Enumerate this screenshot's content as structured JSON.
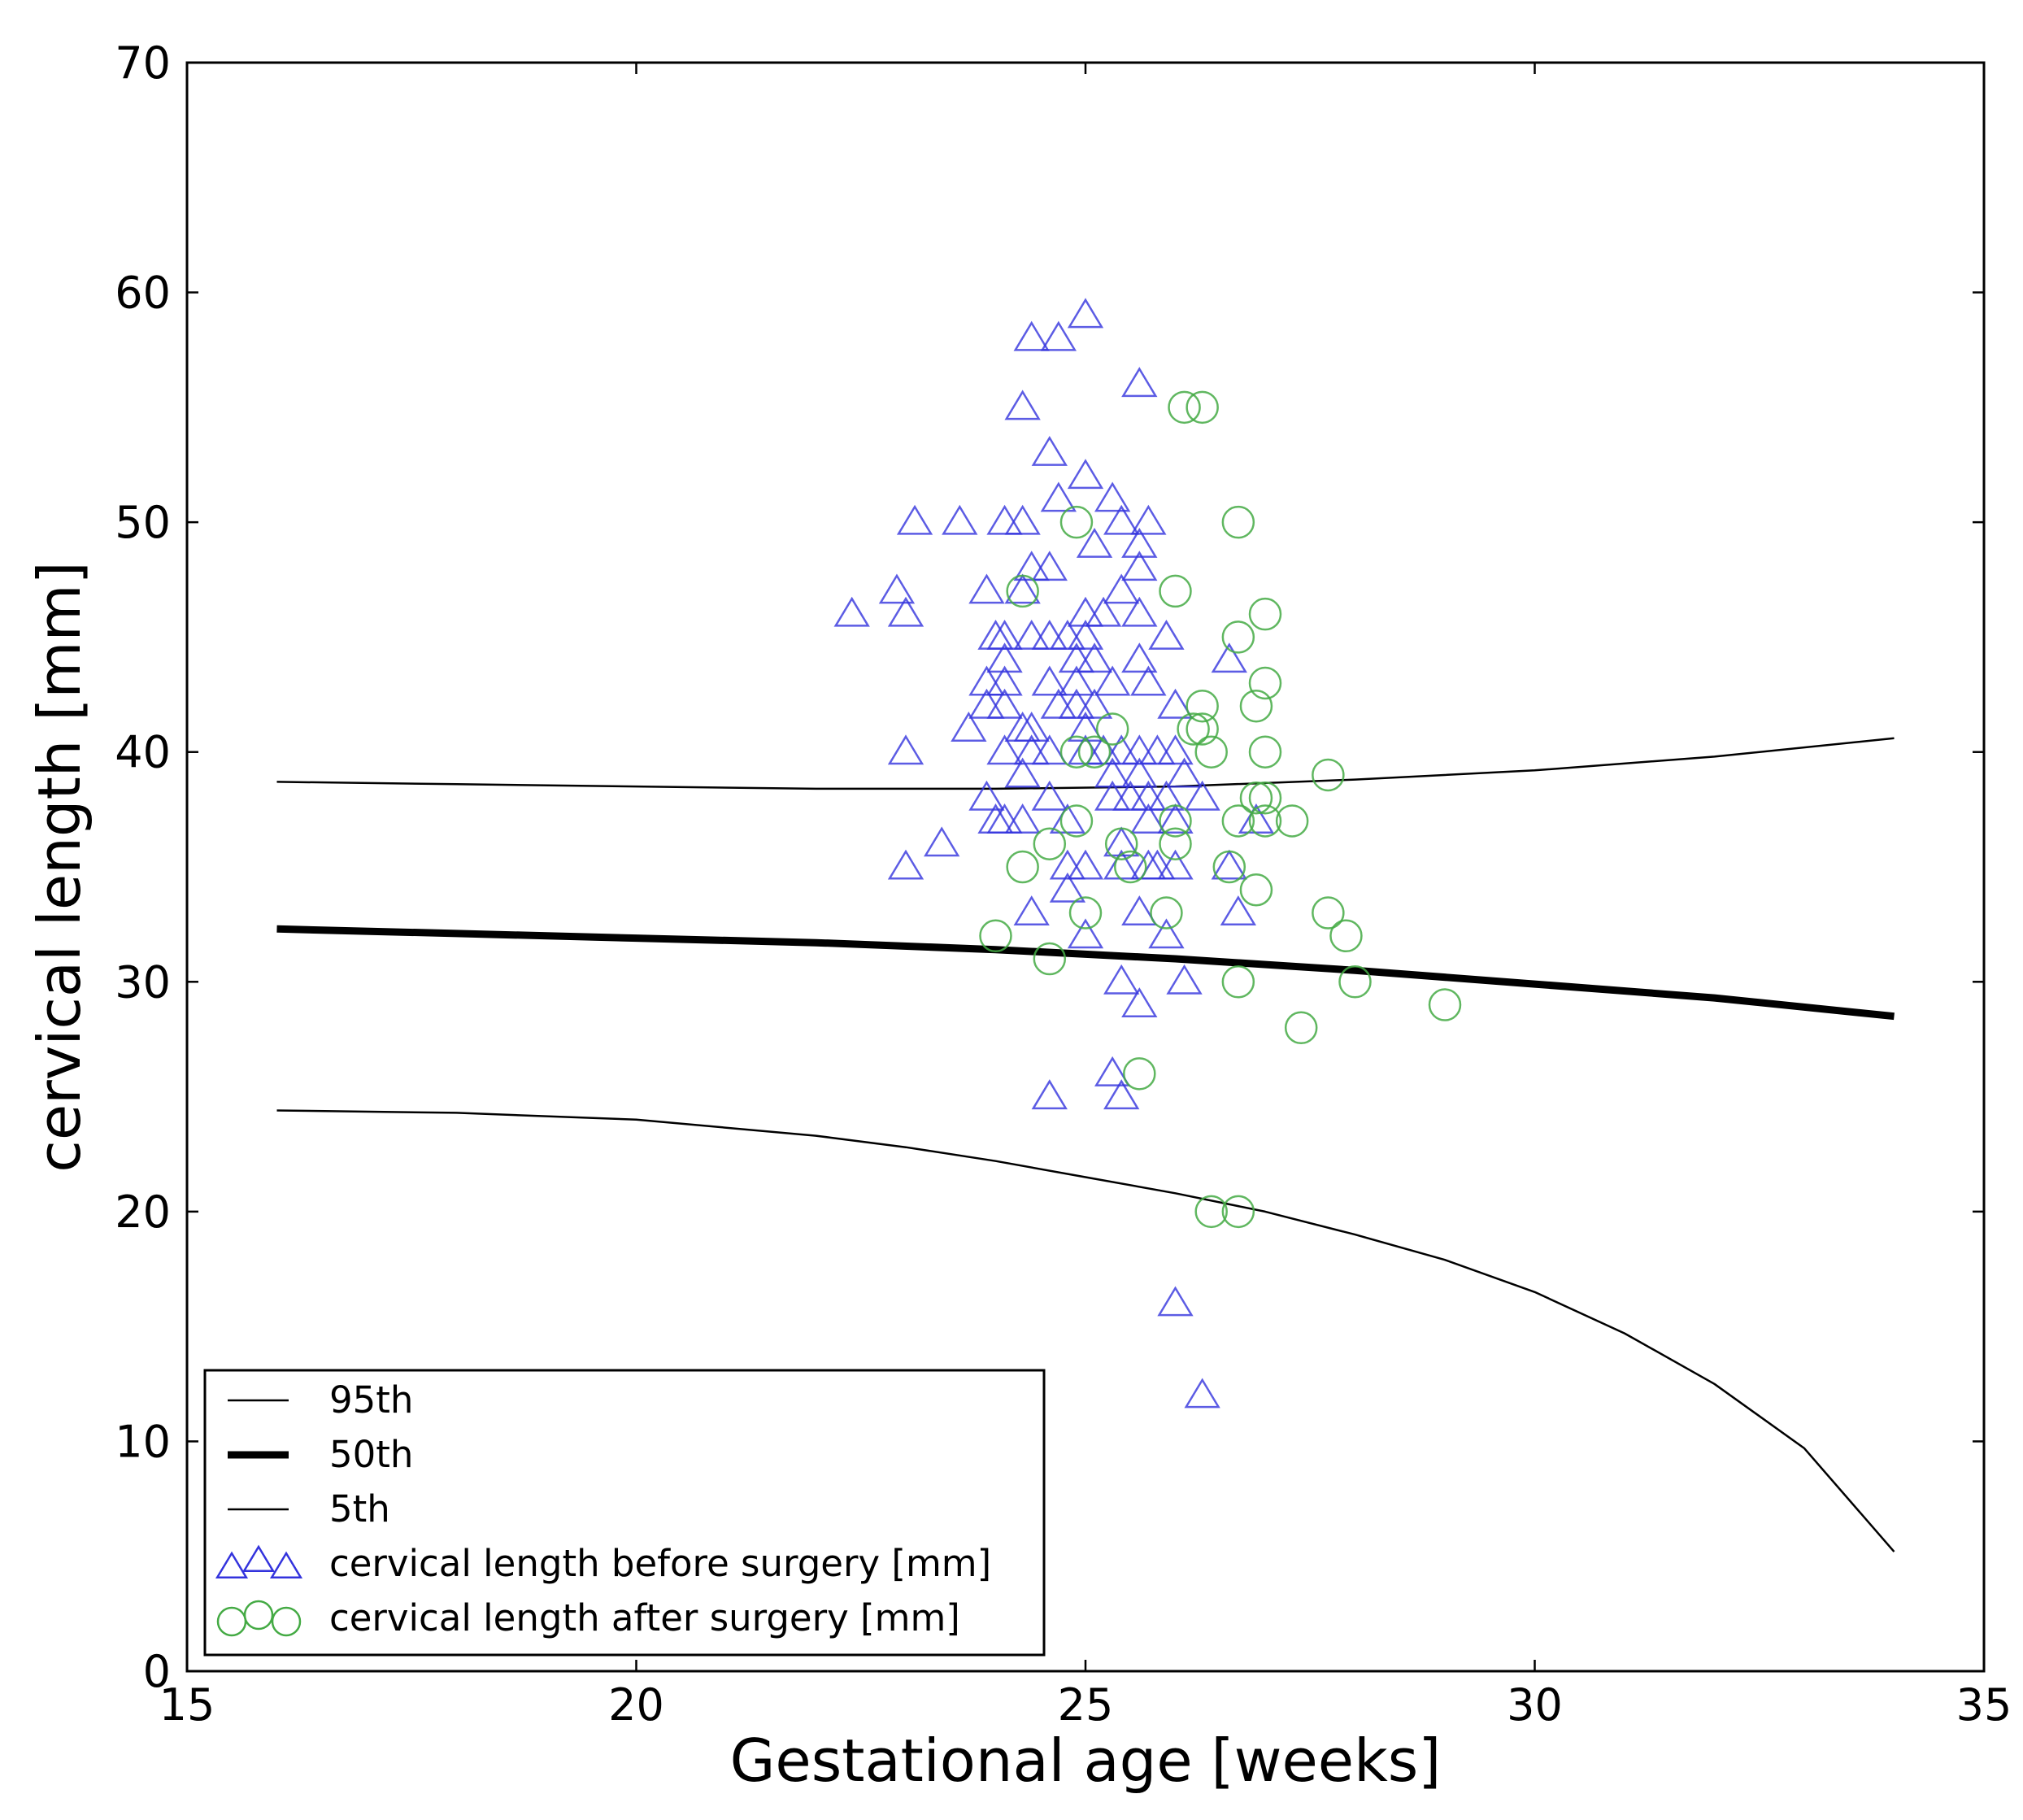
{
  "chart_data": {
    "type": "scatter",
    "title": "",
    "xlabel": "Gestational age [weeks]",
    "ylabel": "cervical length [mm]",
    "xlim": [
      15,
      35
    ],
    "ylim": [
      0,
      70
    ],
    "xticks": [
      15,
      20,
      25,
      30,
      35
    ],
    "yticks": [
      0,
      10,
      20,
      30,
      40,
      50,
      60,
      70
    ],
    "grid": false,
    "legend_position": "lower-left",
    "series": [
      {
        "name": "95th",
        "kind": "line",
        "style": "thin",
        "color": "#000000",
        "x": [
          16,
          18,
          20,
          22,
          24,
          26,
          28,
          30,
          32,
          34
        ],
        "y": [
          38.7,
          38.6,
          38.5,
          38.4,
          38.4,
          38.5,
          38.8,
          39.2,
          39.8,
          40.6
        ]
      },
      {
        "name": "50th",
        "kind": "line",
        "style": "thick",
        "color": "#000000",
        "x": [
          16,
          18,
          20,
          22,
          24,
          26,
          28,
          30,
          32,
          34
        ],
        "y": [
          32.3,
          32.1,
          31.9,
          31.7,
          31.4,
          31.0,
          30.5,
          29.9,
          29.3,
          28.5
        ]
      },
      {
        "name": "5th",
        "kind": "line",
        "style": "thin",
        "color": "#000000",
        "x": [
          16,
          18,
          20,
          22,
          23,
          24,
          25,
          26,
          27,
          28,
          29,
          30,
          31,
          32,
          33,
          34
        ],
        "y": [
          24.4,
          24.3,
          24.0,
          23.3,
          22.8,
          22.2,
          21.5,
          20.8,
          20.0,
          19.0,
          17.9,
          16.5,
          14.7,
          12.5,
          9.7,
          5.2
        ]
      },
      {
        "name": "cervical length before surgery [mm]",
        "kind": "scatter",
        "marker": "triangle",
        "color": "#3333dd",
        "points": [
          [
            25.0,
            59
          ],
          [
            24.4,
            58
          ],
          [
            24.7,
            58
          ],
          [
            25.6,
            56
          ],
          [
            24.3,
            55
          ],
          [
            24.6,
            53
          ],
          [
            25.0,
            52
          ],
          [
            24.7,
            51
          ],
          [
            25.3,
            51
          ],
          [
            23.1,
            50
          ],
          [
            23.6,
            50
          ],
          [
            24.1,
            50
          ],
          [
            24.3,
            50
          ],
          [
            25.4,
            50
          ],
          [
            25.7,
            50
          ],
          [
            25.1,
            49
          ],
          [
            25.6,
            49
          ],
          [
            24.6,
            48
          ],
          [
            24.4,
            48
          ],
          [
            25.6,
            48
          ],
          [
            22.9,
            47
          ],
          [
            23.9,
            47
          ],
          [
            24.3,
            47
          ],
          [
            25.4,
            47
          ],
          [
            22.4,
            46
          ],
          [
            23.0,
            46
          ],
          [
            25.0,
            46
          ],
          [
            25.2,
            46
          ],
          [
            25.6,
            46
          ],
          [
            24.0,
            45
          ],
          [
            24.1,
            45
          ],
          [
            24.4,
            45
          ],
          [
            24.6,
            45
          ],
          [
            24.8,
            45
          ],
          [
            25.0,
            45
          ],
          [
            25.9,
            45
          ],
          [
            24.1,
            44
          ],
          [
            24.9,
            44
          ],
          [
            25.1,
            44
          ],
          [
            25.6,
            44
          ],
          [
            26.6,
            44
          ],
          [
            23.9,
            43
          ],
          [
            24.1,
            43
          ],
          [
            24.6,
            43
          ],
          [
            24.9,
            43
          ],
          [
            25.3,
            43
          ],
          [
            25.7,
            43
          ],
          [
            23.9,
            42
          ],
          [
            24.1,
            42
          ],
          [
            24.7,
            42
          ],
          [
            24.9,
            42
          ],
          [
            25.1,
            42
          ],
          [
            26.0,
            42
          ],
          [
            23.7,
            41
          ],
          [
            24.3,
            41
          ],
          [
            24.4,
            41
          ],
          [
            25.0,
            41
          ],
          [
            23.0,
            40
          ],
          [
            24.1,
            40
          ],
          [
            24.4,
            40
          ],
          [
            24.6,
            40
          ],
          [
            25.0,
            40
          ],
          [
            25.2,
            40
          ],
          [
            25.4,
            40
          ],
          [
            25.6,
            40
          ],
          [
            25.8,
            40
          ],
          [
            26.0,
            40
          ],
          [
            24.3,
            39
          ],
          [
            25.3,
            39
          ],
          [
            25.6,
            39
          ],
          [
            26.1,
            39
          ],
          [
            23.9,
            38
          ],
          [
            24.6,
            38
          ],
          [
            25.3,
            38
          ],
          [
            25.5,
            38
          ],
          [
            25.7,
            38
          ],
          [
            25.9,
            38
          ],
          [
            26.3,
            38
          ],
          [
            24.0,
            37
          ],
          [
            24.1,
            37
          ],
          [
            24.3,
            37
          ],
          [
            24.8,
            37
          ],
          [
            25.7,
            37
          ],
          [
            26.0,
            37
          ],
          [
            26.9,
            37
          ],
          [
            23.4,
            36
          ],
          [
            25.4,
            36
          ],
          [
            23.0,
            35
          ],
          [
            24.8,
            35
          ],
          [
            25.0,
            35
          ],
          [
            25.4,
            35
          ],
          [
            25.7,
            35
          ],
          [
            25.8,
            35
          ],
          [
            26.0,
            35
          ],
          [
            26.6,
            35
          ],
          [
            24.8,
            34
          ],
          [
            24.4,
            33
          ],
          [
            25.6,
            33
          ],
          [
            26.7,
            33
          ],
          [
            25.0,
            32
          ],
          [
            25.9,
            32
          ],
          [
            25.4,
            30
          ],
          [
            26.1,
            30
          ],
          [
            25.6,
            29
          ],
          [
            25.3,
            26
          ],
          [
            24.6,
            25
          ],
          [
            25.4,
            25
          ],
          [
            26.0,
            16
          ],
          [
            26.3,
            12
          ]
        ]
      },
      {
        "name": "cervical length after surgery [mm]",
        "kind": "scatter",
        "marker": "circle",
        "color": "#44aa44",
        "points": [
          [
            26.1,
            55
          ],
          [
            26.3,
            55
          ],
          [
            24.9,
            50
          ],
          [
            26.7,
            50
          ],
          [
            24.3,
            47
          ],
          [
            26.0,
            47
          ],
          [
            27.0,
            46
          ],
          [
            26.7,
            45
          ],
          [
            27.0,
            43
          ],
          [
            26.3,
            42
          ],
          [
            26.9,
            42
          ],
          [
            25.3,
            41
          ],
          [
            26.2,
            41
          ],
          [
            26.3,
            41
          ],
          [
            24.9,
            40
          ],
          [
            25.1,
            40
          ],
          [
            26.4,
            40
          ],
          [
            27.0,
            40
          ],
          [
            27.7,
            39
          ],
          [
            26.9,
            38
          ],
          [
            27.0,
            38
          ],
          [
            24.9,
            37
          ],
          [
            26.0,
            37
          ],
          [
            26.7,
            37
          ],
          [
            27.0,
            37
          ],
          [
            27.3,
            37
          ],
          [
            24.6,
            36
          ],
          [
            25.4,
            36
          ],
          [
            26.0,
            36
          ],
          [
            24.3,
            35
          ],
          [
            25.5,
            35
          ],
          [
            26.6,
            35
          ],
          [
            26.9,
            34
          ],
          [
            25.0,
            33
          ],
          [
            25.9,
            33
          ],
          [
            27.7,
            33
          ],
          [
            24.0,
            32
          ],
          [
            27.9,
            32
          ],
          [
            24.6,
            31
          ],
          [
            26.7,
            30
          ],
          [
            28.0,
            30
          ],
          [
            29.0,
            29
          ],
          [
            27.4,
            28
          ],
          [
            25.6,
            26
          ],
          [
            26.4,
            20
          ],
          [
            26.7,
            20
          ]
        ]
      }
    ]
  }
}
